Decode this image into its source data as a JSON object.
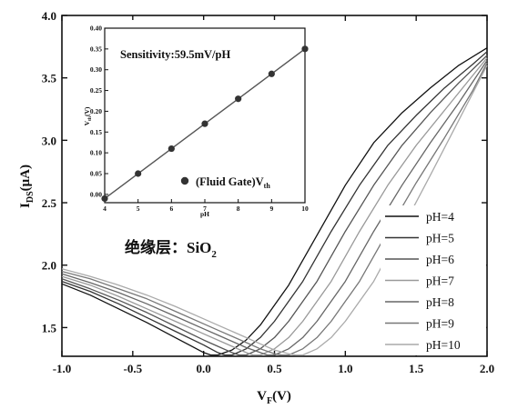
{
  "chart_data": [
    {
      "type": "line",
      "xlabel": "V",
      "xlabel_sub": "F",
      "xlabel_unit": "(V)",
      "ylabel": "I",
      "ylabel_sub": "DS",
      "ylabel_unit": "(μA)",
      "xlim": [
        -1.0,
        2.0
      ],
      "ylim": [
        1.27,
        4.0
      ],
      "x_ticks": [
        "-1.0",
        "-0.5",
        "0.0",
        "0.5",
        "1.0",
        "1.5",
        "2.0"
      ],
      "y_ticks": [
        "1.5",
        "2.0",
        "2.5",
        "3.0",
        "3.5",
        "4.0"
      ],
      "legend_position": "lower-right",
      "annotation": {
        "text": "绝缘层：SiO",
        "sub": "2"
      },
      "series": [
        {
          "name": "pH=4",
          "color": "#111111",
          "x": [
            -1.0,
            -0.8,
            -0.6,
            -0.4,
            -0.2,
            0.0,
            0.05,
            0.1,
            0.2,
            0.3,
            0.4,
            0.6,
            0.8,
            1.0,
            1.2,
            1.4,
            1.6,
            1.8,
            2.0
          ],
          "y": [
            1.85,
            1.76,
            1.65,
            1.54,
            1.42,
            1.3,
            1.28,
            1.28,
            1.32,
            1.4,
            1.52,
            1.84,
            2.24,
            2.64,
            2.98,
            3.22,
            3.42,
            3.6,
            3.74
          ]
        },
        {
          "name": "pH=5",
          "color": "#333333",
          "x": [
            -1.0,
            -0.8,
            -0.6,
            -0.4,
            -0.2,
            0.0,
            0.1,
            0.15,
            0.2,
            0.3,
            0.4,
            0.5,
            0.7,
            0.9,
            1.1,
            1.3,
            1.5,
            1.7,
            1.9,
            2.0
          ],
          "y": [
            1.87,
            1.79,
            1.69,
            1.58,
            1.47,
            1.36,
            1.3,
            1.28,
            1.28,
            1.33,
            1.42,
            1.55,
            1.87,
            2.27,
            2.64,
            2.96,
            3.2,
            3.42,
            3.61,
            3.71
          ]
        },
        {
          "name": "pH=6",
          "color": "#555555",
          "x": [
            -1.0,
            -0.8,
            -0.6,
            -0.4,
            -0.2,
            0.0,
            0.1,
            0.2,
            0.25,
            0.3,
            0.4,
            0.5,
            0.6,
            0.8,
            1.0,
            1.2,
            1.4,
            1.6,
            1.8,
            2.0
          ],
          "y": [
            1.89,
            1.81,
            1.72,
            1.62,
            1.51,
            1.4,
            1.35,
            1.3,
            1.28,
            1.28,
            1.33,
            1.42,
            1.55,
            1.87,
            2.27,
            2.64,
            2.96,
            3.22,
            3.46,
            3.68
          ]
        },
        {
          "name": "pH=7",
          "color": "#999999",
          "x": [
            -1.0,
            -0.8,
            -0.6,
            -0.4,
            -0.2,
            0.0,
            0.1,
            0.2,
            0.3,
            0.35,
            0.4,
            0.5,
            0.6,
            0.7,
            0.9,
            1.1,
            1.3,
            1.5,
            1.7,
            1.9,
            2.0
          ],
          "y": [
            1.91,
            1.84,
            1.75,
            1.65,
            1.55,
            1.45,
            1.4,
            1.35,
            1.3,
            1.28,
            1.28,
            1.33,
            1.42,
            1.55,
            1.87,
            2.27,
            2.64,
            2.96,
            3.24,
            3.52,
            3.66
          ]
        },
        {
          "name": "pH=8",
          "color": "#666666",
          "x": [
            -1.0,
            -0.8,
            -0.6,
            -0.4,
            -0.2,
            0.0,
            0.1,
            0.2,
            0.3,
            0.4,
            0.45,
            0.5,
            0.6,
            0.7,
            0.8,
            1.0,
            1.2,
            1.4,
            1.6,
            1.8,
            2.0
          ],
          "y": [
            1.93,
            1.86,
            1.78,
            1.69,
            1.59,
            1.49,
            1.44,
            1.39,
            1.34,
            1.3,
            1.28,
            1.28,
            1.33,
            1.42,
            1.55,
            1.87,
            2.27,
            2.64,
            2.98,
            3.3,
            3.64
          ]
        },
        {
          "name": "pH=9",
          "color": "#777777",
          "x": [
            -1.0,
            -0.8,
            -0.6,
            -0.4,
            -0.2,
            0.0,
            0.1,
            0.2,
            0.3,
            0.4,
            0.5,
            0.55,
            0.6,
            0.7,
            0.8,
            0.9,
            1.1,
            1.3,
            1.5,
            1.7,
            1.9,
            2.0
          ],
          "y": [
            1.95,
            1.89,
            1.81,
            1.73,
            1.63,
            1.53,
            1.48,
            1.43,
            1.38,
            1.33,
            1.29,
            1.28,
            1.28,
            1.33,
            1.42,
            1.55,
            1.87,
            2.27,
            2.66,
            3.02,
            3.4,
            3.62
          ]
        },
        {
          "name": "pH=10",
          "color": "#aaaaaa",
          "x": [
            -1.0,
            -0.8,
            -0.6,
            -0.4,
            -0.2,
            0.0,
            0.1,
            0.2,
            0.3,
            0.4,
            0.5,
            0.6,
            0.65,
            0.7,
            0.8,
            0.9,
            1.0,
            1.2,
            1.4,
            1.6,
            1.8,
            2.0
          ],
          "y": [
            1.97,
            1.91,
            1.84,
            1.76,
            1.67,
            1.57,
            1.52,
            1.47,
            1.42,
            1.37,
            1.32,
            1.29,
            1.28,
            1.28,
            1.33,
            1.42,
            1.55,
            1.87,
            2.29,
            2.72,
            3.16,
            3.6
          ]
        }
      ]
    },
    {
      "type": "scatter",
      "title": "Sensitivity:59.5mV/pH",
      "xlabel": "pH",
      "ylabel": "V",
      "ylabel_sub": "th",
      "ylabel_unit": "(V)",
      "xlim": [
        4,
        10
      ],
      "ylim": [
        -0.02,
        0.4
      ],
      "x_ticks": [
        "4",
        "5",
        "6",
        "7",
        "8",
        "9",
        "10"
      ],
      "y_ticks": [
        "0.00",
        "0.05",
        "0.10",
        "0.15",
        "0.20",
        "0.25",
        "0.30",
        "0.35",
        "0.40"
      ],
      "legend_position": "bottom-right",
      "fit_line": true,
      "series": [
        {
          "name": "(Fluid Gate)V",
          "name_sub": "th",
          "color": "#333333",
          "x": [
            4,
            5,
            6,
            7,
            8,
            9,
            10
          ],
          "y": [
            -0.01,
            0.05,
            0.11,
            0.17,
            0.23,
            0.29,
            0.35
          ]
        }
      ]
    }
  ]
}
